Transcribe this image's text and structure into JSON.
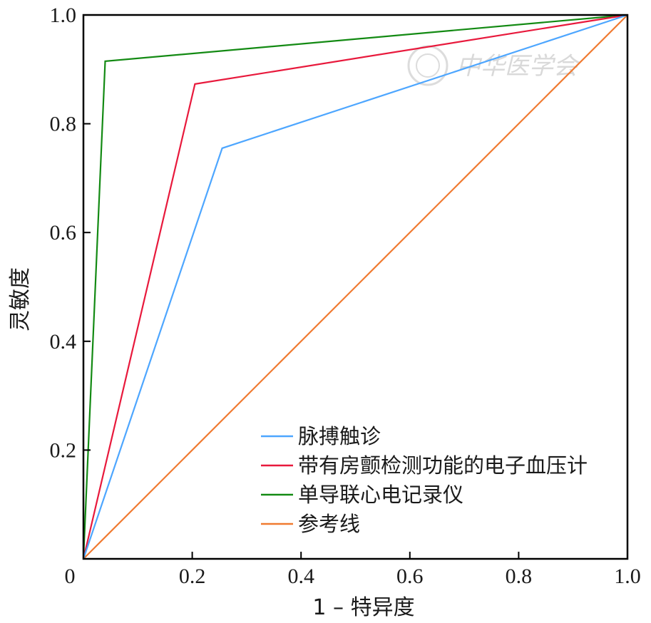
{
  "chart_data": {
    "type": "line",
    "xlabel": "1 – 特异度",
    "ylabel": "灵敏度",
    "xlim": [
      0,
      1
    ],
    "ylim": [
      0,
      1
    ],
    "x_ticks": [
      "0",
      "0.2",
      "0.4",
      "0.6",
      "0.8",
      "1.0"
    ],
    "y_ticks": [
      "0.2",
      "0.4",
      "0.6",
      "0.8",
      "1.0"
    ],
    "x_tick_values": [
      0,
      0.2,
      0.4,
      0.6,
      0.8,
      1.0
    ],
    "y_tick_values": [
      0.2,
      0.4,
      0.6,
      0.8,
      1.0
    ],
    "grid": false,
    "legend_position": "bottom-right",
    "series": [
      {
        "name": "脉搏触诊",
        "color": "#4da6ff",
        "x": [
          0,
          0.255,
          1
        ],
        "y": [
          0,
          0.755,
          1
        ]
      },
      {
        "name": "带有房颤检测功能的电子血压计",
        "color": "#e8193c",
        "x": [
          0,
          0.205,
          1
        ],
        "y": [
          0,
          0.873,
          1
        ]
      },
      {
        "name": "单导联心电记录仪",
        "color": "#138a13",
        "x": [
          0,
          0.04,
          1
        ],
        "y": [
          0,
          0.915,
          1
        ]
      },
      {
        "name": "参考线",
        "color": "#f07a30",
        "x": [
          0,
          1
        ],
        "y": [
          0,
          1
        ]
      }
    ]
  },
  "watermark": {
    "text": "中华医学会"
  }
}
